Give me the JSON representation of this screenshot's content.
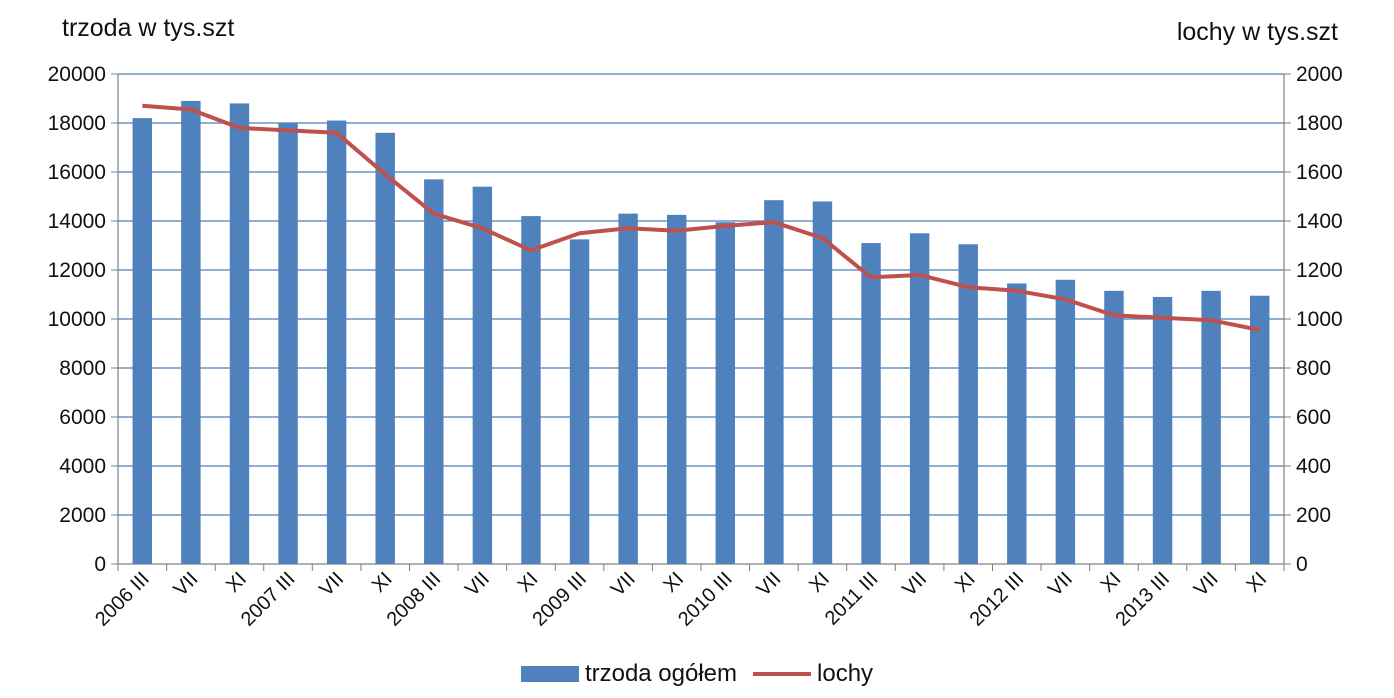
{
  "chart_data": {
    "type": "bar",
    "left_axis_title": "trzoda w tys.szt",
    "right_axis_title": "lochy w tys.szt",
    "categories": [
      "2006 III",
      "VII",
      "XI",
      "2007 III",
      "VII",
      "XI",
      "2008 III",
      "VII",
      "XI",
      "2009 III",
      "VII",
      "XI",
      "2010 III",
      "VII",
      "XI",
      "2011 III",
      "VII",
      "XI",
      "2012 III",
      "VII",
      "XI",
      "2013 III",
      "VII",
      "XI"
    ],
    "y_left": {
      "min": 0,
      "max": 20000,
      "step": 2000,
      "ticks": [
        "0",
        "2000",
        "4000",
        "6000",
        "8000",
        "10000",
        "12000",
        "14000",
        "16000",
        "18000",
        "20000"
      ]
    },
    "y_right": {
      "min": 0,
      "max": 2000,
      "step": 200,
      "ticks": [
        "0",
        "200",
        "400",
        "600",
        "800",
        "1000",
        "1200",
        "1400",
        "1600",
        "1800",
        "2000"
      ]
    },
    "grid": true,
    "legend_position": "bottom",
    "series": [
      {
        "name": "trzoda ogółem",
        "type": "bar",
        "axis": "left",
        "color": "#4f81bd",
        "values": [
          18200,
          18900,
          18800,
          18000,
          18100,
          17600,
          15700,
          15400,
          14200,
          13250,
          14300,
          14250,
          13950,
          14850,
          14800,
          13100,
          13500,
          13050,
          11450,
          11600,
          11150,
          10900,
          11150,
          10950
        ]
      },
      {
        "name": "lochy",
        "type": "line",
        "axis": "right",
        "color": "#c0504d",
        "values": [
          1870,
          1855,
          1780,
          1770,
          1760,
          1590,
          1430,
          1370,
          1280,
          1350,
          1370,
          1360,
          1380,
          1395,
          1330,
          1170,
          1180,
          1130,
          1115,
          1080,
          1015,
          1005,
          995,
          955
        ]
      }
    ]
  }
}
